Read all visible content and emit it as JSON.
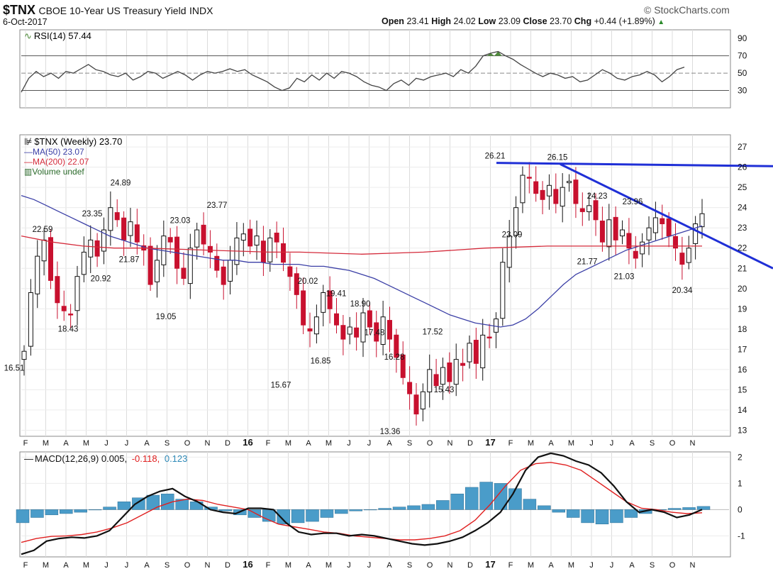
{
  "header": {
    "symbol": "$TNX",
    "name": "CBOE 10-Year US Treasury Yield",
    "exchange": "INDX",
    "source": "© StockCharts.com",
    "date": "6-Oct-2017",
    "open_label": "Open",
    "open": "23.41",
    "high_label": "High",
    "high": "24.02",
    "low_label": "Low",
    "low": "23.09",
    "close_label": "Close",
    "close": "23.70",
    "chg_label": "Chg",
    "chg": "+0.44 (+1.89%)",
    "chg_arrow": "▲"
  },
  "legends": {
    "rsi": "RSI(14) 57.44",
    "price": "$TNX (Weekly) 23.70",
    "ma50": "MA(50) 23.07",
    "ma200": "MA(200) 22.07",
    "volume": "Volume undef",
    "macd_main": "MACD(12,26,9) 0.005,",
    "macd_signal": "-0.118,",
    "macd_hist": "0.123"
  },
  "colors": {
    "up": "#111111",
    "down": "#c8102e",
    "ma50": "#3b3fa6",
    "ma200": "#d42a3a",
    "trendline": "#1f2fd6",
    "macd": "#111111",
    "signal": "#e02020",
    "hist": "#4a9cc9",
    "rsi": "#444444",
    "rsi_fill": "#4e8a3a"
  },
  "x_labels": [
    "F",
    "M",
    "A",
    "M",
    "J",
    "J",
    "A",
    "S",
    "O",
    "N",
    "D",
    "16",
    "F",
    "M",
    "A",
    "M",
    "J",
    "J",
    "A",
    "S",
    "O",
    "N",
    "D",
    "17",
    "F",
    "M",
    "A",
    "M",
    "J",
    "J",
    "A",
    "S",
    "O",
    "N"
  ],
  "chart_data": [
    {
      "type": "line",
      "panel": "rsi",
      "series": [
        {
          "name": "RSI(14)",
          "values": [
            28,
            44,
            52,
            46,
            50,
            44,
            52,
            50,
            55,
            60,
            54,
            52,
            48,
            46,
            50,
            42,
            46,
            52,
            50,
            44,
            48,
            52,
            48,
            42,
            48,
            52,
            50,
            52,
            55,
            52,
            54,
            48,
            44,
            40,
            34,
            30,
            33,
            44,
            40,
            48,
            42,
            50,
            44,
            52,
            50,
            46,
            40,
            36,
            34,
            30,
            38,
            42,
            36,
            44,
            42,
            46,
            48,
            50,
            46,
            54,
            50,
            58,
            70,
            73,
            75,
            70,
            66,
            60,
            55,
            50,
            46,
            50,
            48,
            44,
            46,
            40,
            42,
            48,
            54,
            50,
            44,
            42,
            46,
            48,
            52,
            48,
            40,
            46,
            54,
            57
          ]
        }
      ],
      "y_ticks": [
        30,
        50,
        70,
        90
      ],
      "ylim": [
        10,
        100
      ],
      "levels": [
        30,
        50,
        70
      ]
    },
    {
      "type": "candlestick",
      "panel": "price",
      "y_ticks": [
        13,
        14,
        15,
        16,
        17,
        18,
        19,
        20,
        21,
        22,
        23,
        24,
        25,
        26,
        27
      ],
      "ylim": [
        12.7,
        27.6
      ],
      "closes": [
        16.9,
        19.8,
        21.6,
        22.4,
        20.4,
        19.3,
        18.9,
        18.7,
        20.6,
        21.8,
        22.4,
        21.6,
        22.9,
        24.0,
        23.4,
        22.4,
        23.3,
        22.3,
        21.9,
        20.2,
        21.4,
        22.6,
        22.3,
        21.0,
        20.5,
        22.0,
        22.9,
        22.2,
        21.8,
        20.9,
        20.2,
        21.4,
        22.5,
        22.7,
        22.1,
        22.6,
        21.3,
        22.5,
        22.3,
        21.3,
        20.6,
        19.7,
        18.2,
        17.9,
        18.6,
        19.8,
        19.0,
        18.2,
        17.5,
        18.1,
        17.6,
        18.8,
        18.1,
        17.4,
        18.6,
        17.5,
        16.6,
        15.6,
        14.8,
        13.8,
        14.9,
        16.0,
        15.2,
        16.1,
        15.4,
        16.5,
        16.2,
        17.3,
        16.3,
        17.7,
        17.6,
        18.5,
        21.3,
        22.6,
        24.0,
        25.6,
        25.5,
        24.7,
        24.4,
        25.1,
        24.2,
        25.0,
        25.3,
        24.2,
        23.8,
        24.1,
        23.4,
        22.3,
        23.4,
        22.4,
        22.9,
        22.0,
        21.5,
        22.3,
        23.0,
        23.5,
        23.2,
        22.6,
        22.0,
        21.2,
        22.0,
        23.2,
        23.7
      ],
      "annotations": [
        {
          "label": "16.51",
          "value": 16.51
        },
        {
          "label": "22.59",
          "value": 22.59
        },
        {
          "label": "18.43",
          "value": 18.43
        },
        {
          "label": "23.35",
          "value": 23.35
        },
        {
          "label": "20.92",
          "value": 20.92
        },
        {
          "label": "24.89",
          "value": 24.89
        },
        {
          "label": "21.87",
          "value": 21.87
        },
        {
          "label": "23.03",
          "value": 23.03
        },
        {
          "label": "19.05",
          "value": 19.05
        },
        {
          "label": "23.77",
          "value": 23.77
        },
        {
          "label": "15.67",
          "value": 15.67
        },
        {
          "label": "20.02",
          "value": 20.02
        },
        {
          "label": "16.85",
          "value": 16.85
        },
        {
          "label": "19.41",
          "value": 19.41
        },
        {
          "label": "18.90",
          "value": 18.9
        },
        {
          "label": "17.48",
          "value": 17.48
        },
        {
          "label": "16.28",
          "value": 16.28
        },
        {
          "label": "13.36",
          "value": 13.36
        },
        {
          "label": "17.52",
          "value": 17.52
        },
        {
          "label": "15.43",
          "value": 15.43
        },
        {
          "label": "26.21",
          "value": 26.21
        },
        {
          "label": "23.09",
          "value": 23.09
        },
        {
          "label": "26.15",
          "value": 26.15
        },
        {
          "label": "24.23",
          "value": 24.23
        },
        {
          "label": "21.77",
          "value": 21.77
        },
        {
          "label": "23.96",
          "value": 23.96
        },
        {
          "label": "21.03",
          "value": 21.03
        },
        {
          "label": "20.34",
          "value": 20.34
        }
      ],
      "ma50_values": [
        24.6,
        24.4,
        24.1,
        23.8,
        23.5,
        23.2,
        22.9,
        22.6,
        22.4,
        22.2,
        22.0,
        21.9,
        21.8,
        21.7,
        21.6,
        21.5,
        21.4,
        21.4,
        21.3,
        21.3,
        21.2,
        21.2,
        21.2,
        21.1,
        21.1,
        21.0,
        20.9,
        20.7,
        20.5,
        20.2,
        19.9,
        19.6,
        19.3,
        19.0,
        18.7,
        18.5,
        18.3,
        18.2,
        18.1,
        18.2,
        18.5,
        19.0,
        19.6,
        20.2,
        20.7,
        21.0,
        21.3,
        21.6,
        21.9,
        22.1,
        22.3,
        22.5,
        22.7,
        22.9,
        23.1
      ],
      "ma200_values": [
        22.6,
        22.3,
        22.1,
        22.0,
        22.0,
        21.95,
        21.9,
        21.85,
        21.8,
        21.8,
        21.75,
        21.7,
        21.75,
        21.8,
        21.9,
        22.0,
        22.05,
        22.1,
        22.1,
        22.1,
        22.1,
        22.1,
        22.1
      ],
      "trendlines": [
        {
          "from": 26.21,
          "to": 26.05
        },
        {
          "from": 26.15,
          "to": 21.0
        }
      ]
    },
    {
      "type": "bar",
      "panel": "macd",
      "y_ticks": [
        -1,
        0,
        1,
        2
      ],
      "ylim": [
        -1.8,
        2.2
      ],
      "series": [
        {
          "name": "MACD(12,26,9)",
          "values": [
            -1.7,
            -1.55,
            -1.2,
            -1.1,
            -1.05,
            -1.08,
            -1.0,
            -0.8,
            -0.3,
            0.2,
            0.5,
            0.7,
            0.8,
            0.5,
            0.3,
            0.0,
            -0.1,
            -0.15,
            0.05,
            0.05,
            0.0,
            -0.5,
            -0.85,
            -0.95,
            -0.9,
            -0.9,
            -1.0,
            -0.95,
            -1.0,
            -1.1,
            -1.2,
            -1.3,
            -1.35,
            -1.3,
            -1.2,
            -1.05,
            -0.8,
            -0.5,
            -0.1,
            0.6,
            1.5,
            2.0,
            2.15,
            2.05,
            1.85,
            1.7,
            1.4,
            0.9,
            0.3,
            -0.1,
            0.0,
            -0.1,
            -0.3,
            -0.2,
            0.005
          ]
        },
        {
          "name": "Signal",
          "values": [
            -1.25,
            -1.1,
            -1.02,
            -1.0,
            -0.95,
            -0.85,
            -0.7,
            -0.5,
            -0.2,
            0.1,
            0.3,
            0.4,
            0.35,
            0.2,
            0.1,
            0.0,
            -0.3,
            -0.55,
            -0.65,
            -0.75,
            -0.85,
            -0.9,
            -1.0,
            -1.05,
            -1.1,
            -1.15,
            -1.15,
            -1.1,
            -1.0,
            -0.8,
            -0.4,
            0.2,
            0.9,
            1.5,
            1.75,
            1.8,
            1.7,
            1.5,
            1.1,
            0.7,
            0.3,
            0.05,
            0.0,
            -0.1,
            -0.15,
            -0.118
          ]
        },
        {
          "name": "Histogram",
          "values": [
            -0.5,
            -0.3,
            -0.2,
            -0.15,
            -0.1,
            0.0,
            0.1,
            0.3,
            0.45,
            0.55,
            0.6,
            0.4,
            0.3,
            0.1,
            -0.05,
            -0.2,
            -0.3,
            -0.45,
            -0.55,
            -0.5,
            -0.45,
            -0.3,
            -0.15,
            -0.05,
            0.0,
            0.05,
            0.1,
            0.15,
            0.2,
            0.35,
            0.6,
            0.85,
            1.05,
            1.0,
            0.8,
            0.4,
            0.15,
            -0.1,
            -0.3,
            -0.5,
            -0.55,
            -0.5,
            -0.3,
            -0.15,
            0.0,
            0.05,
            0.08,
            0.123
          ]
        }
      ]
    }
  ]
}
